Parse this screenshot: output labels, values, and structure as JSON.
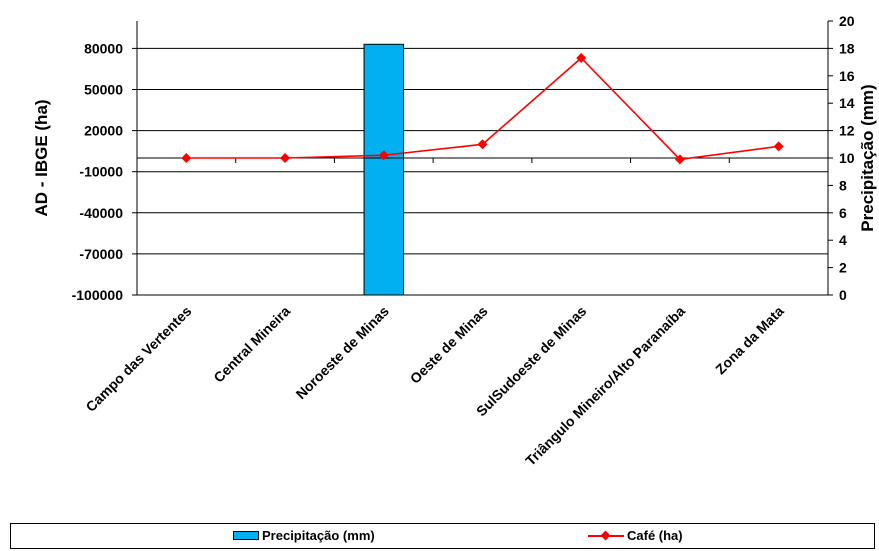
{
  "chart_data": {
    "type": "bar+line",
    "categories": [
      "Campo das Vertentes",
      "Central Mineira",
      "Noroeste de Minas",
      "Oeste de Minas",
      "SulSudoeste de Minas",
      "Triângulo Mineiro/Alto Paranaíba",
      "Zona da Mata"
    ],
    "left_axis": {
      "label": "AD - IBGE (ha)",
      "range": [
        -100000,
        100000
      ],
      "ticks": [
        -100000,
        -70000,
        -40000,
        -10000,
        20000,
        50000,
        80000
      ]
    },
    "right_axis": {
      "label": "Precipitação (mm)",
      "range": [
        0,
        20
      ],
      "ticks": [
        0,
        2,
        4,
        6,
        8,
        10,
        12,
        14,
        16,
        18,
        20
      ]
    },
    "series": [
      {
        "name": "Precipitação (mm)",
        "type": "bar",
        "axis": "right",
        "color": "#00b0f0",
        "values": [
          null,
          null,
          18.3,
          null,
          null,
          null,
          null
        ]
      },
      {
        "name": "Café (ha)",
        "type": "line",
        "axis": "left",
        "color": "#ff0000",
        "marker": "diamond",
        "values": [
          0,
          0,
          2000,
          10000,
          73000,
          -1000,
          8500
        ]
      }
    ],
    "grid": true,
    "legend_position": "bottom"
  }
}
